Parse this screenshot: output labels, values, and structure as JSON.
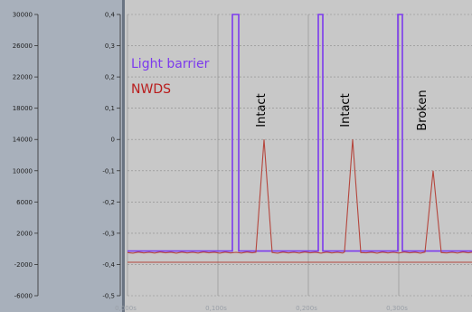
{
  "chart_data": {
    "type": "line",
    "x_axis": {
      "ticks": [
        "0,000s",
        "0,100s",
        "0,200s",
        "0,300s"
      ],
      "range": [
        0,
        0.38
      ]
    },
    "y_axis_left": {
      "ticks": [
        "30000",
        "26000",
        "22000",
        "18000",
        "14000",
        "10000",
        "6000",
        "2000",
        "-2000",
        "-6000"
      ],
      "range": [
        -6000,
        30000
      ]
    },
    "y_axis_right": {
      "ticks": [
        "0,4",
        "0,3",
        "0,2",
        "0,1",
        "0",
        "-0,1",
        "-0,2",
        "-0,3",
        "-0,4",
        "-0,5"
      ],
      "range": [
        -0.5,
        0.4
      ]
    },
    "grid": true,
    "series": [
      {
        "name": "Light barrier",
        "color": "#7c3aed",
        "baseline": -0.357,
        "high": 0.4,
        "pulses": [
          [
            0.116,
            0.123
          ],
          [
            0.211,
            0.216
          ],
          [
            0.299,
            0.304
          ]
        ]
      },
      {
        "name": "NWDS",
        "color": "#b5463d",
        "baseline": -0.362,
        "peaks": [
          {
            "x": 0.151,
            "y": 0.0
          },
          {
            "x": 0.249,
            "y": 0.0
          },
          {
            "x": 0.338,
            "y": -0.1
          }
        ]
      }
    ],
    "annotations": [
      {
        "text": "Intact",
        "x": 0.152
      },
      {
        "text": "Intact",
        "x": 0.245
      },
      {
        "text": "Broken",
        "x": 0.33
      }
    ]
  },
  "colors": {
    "plot_bg": "#c8c8c8",
    "left_panel": "#a8b0bb",
    "grid": "#8c8c8c",
    "red_baseline_extra": "#b5463d"
  }
}
